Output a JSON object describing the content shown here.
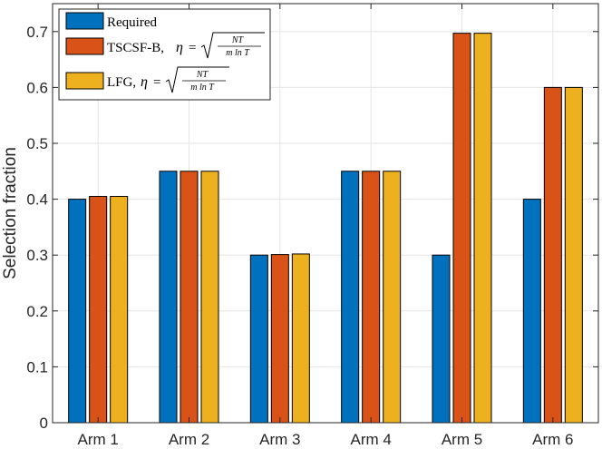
{
  "chart_data": {
    "type": "bar",
    "title": "",
    "xlabel": "",
    "ylabel": "Selection fraction",
    "ylim": [
      0,
      0.75
    ],
    "yticks": [
      "0",
      "0.1",
      "0.2",
      "0.3",
      "0.4",
      "0.5",
      "0.6",
      "0.7"
    ],
    "grid": true,
    "legend_position": "top-left",
    "categories": [
      "Arm 1",
      "Arm 2",
      "Arm 3",
      "Arm 4",
      "Arm 5",
      "Arm 6"
    ],
    "series": [
      {
        "name": "Required",
        "legend_text": "Required",
        "color": "#0072BD",
        "values": [
          0.4,
          0.45,
          0.3,
          0.45,
          0.3,
          0.4
        ]
      },
      {
        "name": "TSCSF-B",
        "legend_text": "TSCSF-B,",
        "color": "#D95319",
        "values": [
          0.405,
          0.45,
          0.301,
          0.45,
          0.697,
          0.6
        ]
      },
      {
        "name": "LFG",
        "legend_text": "LFG,",
        "color": "#EDB120",
        "values": [
          0.405,
          0.45,
          0.302,
          0.45,
          0.697,
          0.6
        ]
      }
    ],
    "legend_formula": {
      "eta": "η",
      "equals": "=",
      "numerator": "NT",
      "denominator": "m ln T"
    }
  }
}
